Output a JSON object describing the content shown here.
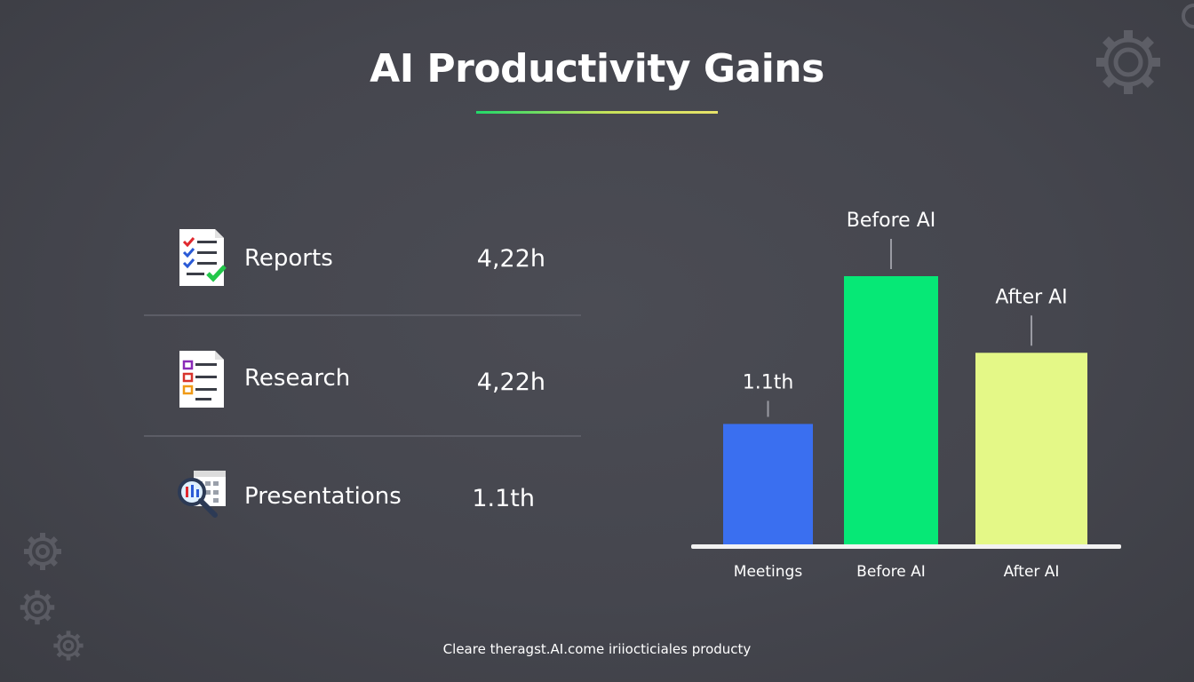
{
  "title": "AI Productivity Gains",
  "rows": [
    {
      "label": "Reports",
      "value": "4,22h",
      "icon": "checklist-document-icon"
    },
    {
      "label": "Research",
      "value": "4,22h",
      "icon": "task-list-document-icon"
    },
    {
      "label": "Presentations",
      "value": "1.1th",
      "icon": "magnifier-calendar-icon"
    }
  ],
  "footer": "Cleare theragst.AI.come iriiocticiales producty",
  "colors": {
    "background": "#46474f",
    "bar_meetings": "#3a6ff0",
    "bar_before": "#06e876",
    "bar_after": "#e4f887",
    "axis": "#f2f2f2",
    "divider": "#5c5d66"
  },
  "chart_data": {
    "type": "bar",
    "categories": [
      "Meetings",
      "Before AI",
      "After AI"
    ],
    "values": [
      1.1,
      2.45,
      1.75
    ],
    "data_labels": [
      "1.1th",
      "Before AI",
      "After AI"
    ],
    "title": "",
    "xlabel": "",
    "ylabel": "",
    "ylim": [
      0,
      2.45
    ],
    "grid": false,
    "legend": "none"
  }
}
